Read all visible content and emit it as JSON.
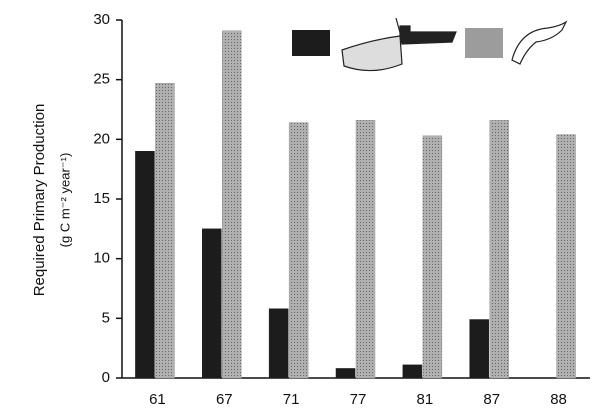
{
  "chart_data": {
    "type": "bar",
    "y_label": "Required Primary Production",
    "y_unit": "(g C m⁻² year⁻¹)",
    "categories": [
      "61",
      "67",
      "71",
      "77",
      "81",
      "87",
      "88"
    ],
    "series": [
      {
        "color": "#1c1c1c",
        "values": [
          19,
          12.5,
          5.8,
          0.8,
          1.1,
          4.9,
          0
        ]
      },
      {
        "color": "#9c9c9c",
        "values": [
          24.7,
          29.1,
          21.4,
          21.6,
          20.3,
          21.6,
          20.4
        ]
      }
    ],
    "ylim": [
      0,
      30
    ],
    "yticks": [
      0,
      5,
      10,
      15,
      20,
      25,
      30
    ],
    "grid": false
  }
}
